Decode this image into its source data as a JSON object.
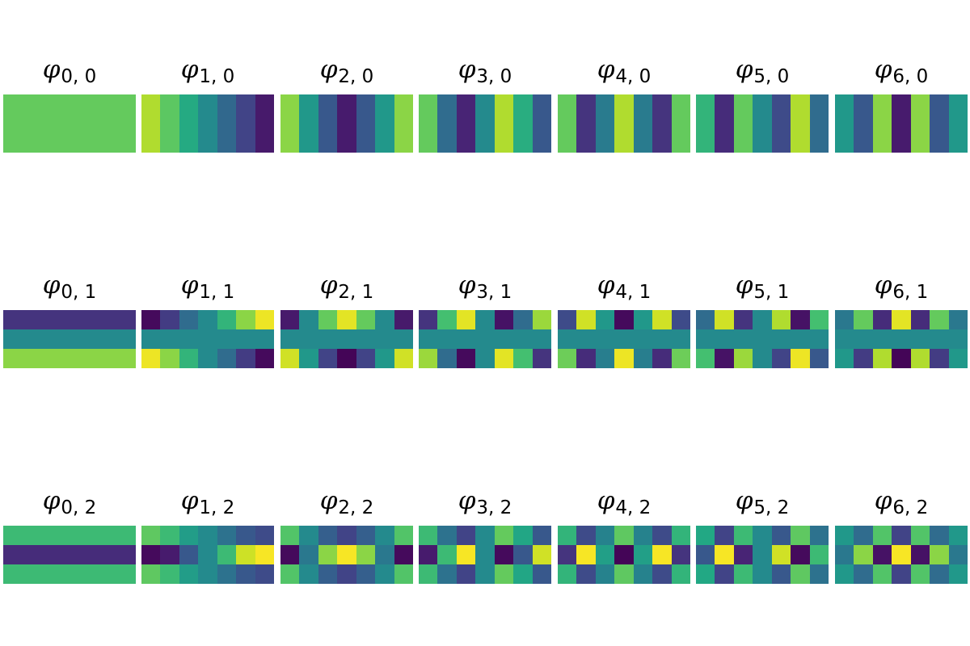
{
  "chart_data": {
    "type": "heatmap",
    "colormap": "viridis",
    "vmin": -1,
    "vmax": 1,
    "rows": 3,
    "cols": 7,
    "grid": false,
    "axes": "off",
    "title_symbol": "φ",
    "panels": [
      {
        "subscript": "0, 0",
        "values": [
          [
            0.52,
            0.52,
            0.52,
            0.52,
            0.52,
            0.52,
            0.52
          ],
          [
            0.52,
            0.52,
            0.52,
            0.52,
            0.52,
            0.52,
            0.52
          ],
          [
            0.52,
            0.52,
            0.52,
            0.52,
            0.52,
            0.52,
            0.52
          ]
        ]
      },
      {
        "subscript": "1, 0",
        "values": [
          [
            0.76,
            0.49,
            0.22,
            -0.06,
            -0.33,
            -0.6,
            -0.86
          ],
          [
            0.76,
            0.49,
            0.22,
            -0.06,
            -0.33,
            -0.6,
            -0.86
          ],
          [
            0.76,
            0.49,
            0.22,
            -0.06,
            -0.33,
            -0.6,
            -0.86
          ]
        ]
      },
      {
        "subscript": "2, 0",
        "values": [
          [
            0.65,
            0.06,
            -0.45,
            -0.85,
            -0.45,
            0.06,
            0.65
          ],
          [
            0.65,
            0.06,
            -0.45,
            -0.85,
            -0.45,
            0.06,
            0.65
          ],
          [
            0.65,
            0.06,
            -0.45,
            -0.85,
            -0.45,
            0.06,
            0.65
          ]
        ]
      },
      {
        "subscript": "3, 0",
        "values": [
          [
            0.52,
            -0.3,
            -0.8,
            -0.06,
            0.76,
            0.24,
            -0.45
          ],
          [
            0.52,
            -0.3,
            -0.8,
            -0.06,
            0.76,
            0.24,
            -0.45
          ],
          [
            0.52,
            -0.3,
            -0.8,
            -0.06,
            0.76,
            0.24,
            -0.45
          ]
        ]
      },
      {
        "subscript": "4, 0",
        "values": [
          [
            0.52,
            -0.7,
            -0.18,
            0.76,
            -0.18,
            -0.7,
            0.52
          ],
          [
            0.52,
            -0.7,
            -0.18,
            0.76,
            -0.18,
            -0.7,
            0.52
          ],
          [
            0.52,
            -0.7,
            -0.18,
            0.76,
            -0.18,
            -0.7,
            0.52
          ]
        ]
      },
      {
        "subscript": "5, 0",
        "values": [
          [
            0.3,
            -0.75,
            0.52,
            -0.06,
            -0.55,
            0.76,
            -0.3
          ],
          [
            0.3,
            -0.75,
            0.52,
            -0.06,
            -0.55,
            0.76,
            -0.3
          ],
          [
            0.3,
            -0.75,
            0.52,
            -0.06,
            -0.55,
            0.76,
            -0.3
          ]
        ]
      },
      {
        "subscript": "6, 0",
        "values": [
          [
            0.06,
            -0.45,
            0.65,
            -0.85,
            0.65,
            -0.45,
            0.06
          ],
          [
            0.06,
            -0.45,
            0.65,
            -0.85,
            0.65,
            -0.45,
            0.06
          ],
          [
            0.06,
            -0.45,
            0.65,
            -0.85,
            0.65,
            -0.45,
            0.06
          ]
        ]
      },
      {
        "subscript": "0, 1",
        "values": [
          [
            -0.7,
            -0.7,
            -0.7,
            -0.7,
            -0.7,
            -0.7,
            -0.7
          ],
          [
            -0.06,
            -0.06,
            -0.06,
            -0.06,
            -0.06,
            -0.06,
            -0.06
          ],
          [
            0.65,
            0.65,
            0.65,
            0.65,
            0.65,
            0.65,
            0.65
          ]
        ]
      },
      {
        "subscript": "1, 1",
        "values": [
          [
            -0.95,
            -0.65,
            -0.3,
            -0.06,
            0.3,
            0.65,
            0.95
          ],
          [
            -0.06,
            -0.06,
            -0.06,
            -0.06,
            -0.06,
            -0.06,
            -0.06
          ],
          [
            0.95,
            0.65,
            0.3,
            -0.06,
            -0.3,
            -0.65,
            -0.95
          ]
        ]
      },
      {
        "subscript": "2, 1",
        "values": [
          [
            -0.86,
            -0.06,
            0.52,
            0.92,
            0.52,
            -0.06,
            -0.86
          ],
          [
            -0.06,
            -0.06,
            -0.06,
            -0.06,
            -0.06,
            -0.06,
            -0.06
          ],
          [
            0.86,
            0.06,
            -0.6,
            -0.98,
            -0.6,
            0.06,
            0.86
          ]
        ]
      },
      {
        "subscript": "3, 1",
        "values": [
          [
            -0.7,
            0.4,
            0.92,
            -0.06,
            -0.9,
            -0.3,
            0.7
          ],
          [
            -0.06,
            -0.06,
            -0.06,
            -0.06,
            -0.06,
            -0.06,
            -0.06
          ],
          [
            0.7,
            -0.3,
            -0.95,
            -0.06,
            0.92,
            0.4,
            -0.7
          ]
        ]
      },
      {
        "subscript": "4, 1",
        "values": [
          [
            -0.55,
            0.86,
            0.06,
            -0.95,
            0.06,
            0.86,
            -0.55
          ],
          [
            -0.06,
            -0.06,
            -0.06,
            -0.06,
            -0.06,
            -0.06,
            -0.06
          ],
          [
            0.55,
            -0.75,
            -0.15,
            0.95,
            -0.15,
            -0.75,
            0.55
          ]
        ]
      },
      {
        "subscript": "5, 1",
        "values": [
          [
            -0.3,
            0.86,
            -0.7,
            -0.06,
            0.76,
            -0.9,
            0.4
          ],
          [
            -0.06,
            -0.06,
            -0.06,
            -0.06,
            -0.06,
            -0.06,
            -0.06
          ],
          [
            0.4,
            -0.9,
            0.7,
            -0.06,
            -0.6,
            0.95,
            -0.45
          ]
        ]
      },
      {
        "subscript": "6, 1",
        "values": [
          [
            -0.2,
            0.52,
            -0.75,
            0.92,
            -0.75,
            0.52,
            -0.2
          ],
          [
            -0.06,
            -0.06,
            -0.06,
            -0.06,
            -0.06,
            -0.06,
            -0.06
          ],
          [
            0.06,
            -0.65,
            0.76,
            -0.98,
            0.76,
            -0.65,
            0.06
          ]
        ]
      },
      {
        "subscript": "0, 2",
        "values": [
          [
            0.36,
            0.36,
            0.36,
            0.36,
            0.36,
            0.36,
            0.36
          ],
          [
            -0.75,
            -0.75,
            -0.75,
            -0.75,
            -0.75,
            -0.75,
            -0.75
          ],
          [
            0.36,
            0.36,
            0.36,
            0.36,
            0.36,
            0.36,
            0.36
          ]
        ]
      },
      {
        "subscript": "1, 2",
        "values": [
          [
            0.5,
            0.36,
            0.1,
            -0.06,
            -0.25,
            -0.45,
            -0.55
          ],
          [
            -0.95,
            -0.85,
            -0.45,
            -0.06,
            0.36,
            0.85,
            0.98
          ],
          [
            0.5,
            0.36,
            0.1,
            -0.06,
            -0.25,
            -0.45,
            -0.55
          ]
        ]
      },
      {
        "subscript": "2, 2",
        "values": [
          [
            0.45,
            -0.06,
            -0.4,
            -0.6,
            -0.4,
            -0.06,
            0.45
          ],
          [
            -0.95,
            -0.2,
            0.65,
            0.98,
            0.65,
            -0.2,
            -0.95
          ],
          [
            0.45,
            -0.06,
            -0.4,
            -0.6,
            -0.4,
            -0.06,
            0.45
          ]
        ]
      },
      {
        "subscript": "3, 2",
        "values": [
          [
            0.36,
            -0.25,
            -0.6,
            -0.06,
            0.52,
            0.18,
            -0.45
          ],
          [
            -0.85,
            0.36,
            0.98,
            -0.06,
            -0.95,
            -0.45,
            0.86
          ],
          [
            0.36,
            -0.25,
            -0.6,
            -0.06,
            0.52,
            0.18,
            -0.45
          ]
        ]
      },
      {
        "subscript": "4, 2",
        "values": [
          [
            0.3,
            -0.55,
            -0.12,
            0.5,
            -0.12,
            -0.55,
            0.3
          ],
          [
            -0.7,
            0.98,
            0.12,
            -0.98,
            0.12,
            0.98,
            -0.7
          ],
          [
            0.3,
            -0.55,
            -0.12,
            0.5,
            -0.12,
            -0.55,
            0.3
          ]
        ]
      },
      {
        "subscript": "5, 2",
        "values": [
          [
            0.2,
            -0.6,
            0.36,
            -0.06,
            -0.45,
            0.5,
            -0.25
          ],
          [
            -0.45,
            0.98,
            -0.8,
            -0.06,
            0.86,
            -0.95,
            0.36
          ],
          [
            0.2,
            -0.6,
            0.36,
            -0.06,
            -0.45,
            0.5,
            -0.25
          ]
        ]
      },
      {
        "subscript": "6, 2",
        "values": [
          [
            0.06,
            -0.3,
            0.45,
            -0.6,
            0.45,
            -0.3,
            0.06
          ],
          [
            -0.2,
            0.65,
            -0.9,
            0.98,
            -0.9,
            0.65,
            -0.2
          ],
          [
            0.06,
            -0.3,
            0.45,
            -0.6,
            0.45,
            -0.3,
            0.06
          ]
        ]
      }
    ]
  }
}
